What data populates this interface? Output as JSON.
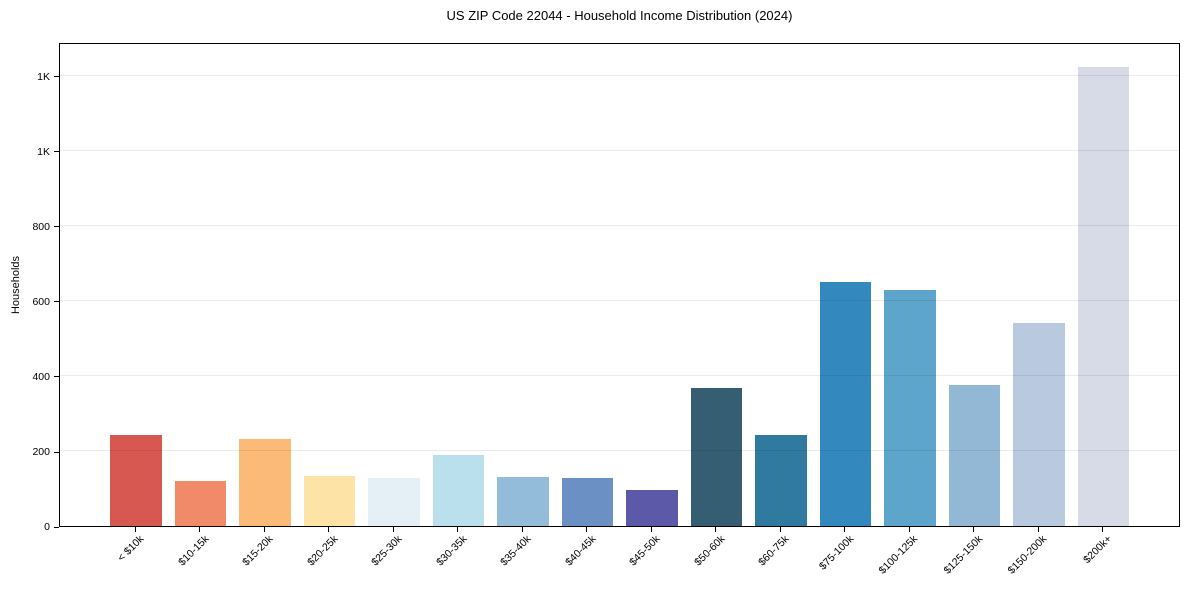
{
  "chart_data": {
    "type": "bar",
    "title": "US ZIP Code 22044 - Household Income Distribution (2024)",
    "xlabel": "",
    "ylabel": "Households",
    "categories": [
      "< $10k",
      "$10-15k",
      "$15-20k",
      "$20-25k",
      "$25-30k",
      "$30-35k",
      "$35-40k",
      "$40-45k",
      "$45-50k",
      "$50-60k",
      "$60-75k",
      "$75-100k",
      "$100-125k",
      "$125-150k",
      "$150-200k",
      "$200k+"
    ],
    "values": [
      243,
      121,
      232,
      134,
      128,
      190,
      131,
      127,
      96,
      367,
      243,
      651,
      630,
      377,
      541,
      1223
    ],
    "bar_colors": [
      "#d65850",
      "#f08a68",
      "#fbba77",
      "#fde3a6",
      "#e4f0f6",
      "#badfed",
      "#92bcd9",
      "#6b91c4",
      "#5b59a8",
      "#355e73",
      "#30799f",
      "#3389be",
      "#5da5cb",
      "#93b8d6",
      "#b8c9e0",
      "#d7dae7"
    ],
    "ylim": [
      0,
      1290
    ],
    "yticks": [
      {
        "value": 0,
        "label": "0"
      },
      {
        "value": 200,
        "label": "200"
      },
      {
        "value": 400,
        "label": "400"
      },
      {
        "value": 600,
        "label": "600"
      },
      {
        "value": 800,
        "label": "800"
      },
      {
        "value": 1000,
        "label": "1K"
      },
      {
        "value": 1200,
        "label": "1K"
      }
    ],
    "grid": "horizontal",
    "grid_color": "rgba(0,0,0,0.08)",
    "legend": "none",
    "spine_color": "#000000",
    "background": "#ffffff",
    "xlabel_rotation_deg": 45
  }
}
